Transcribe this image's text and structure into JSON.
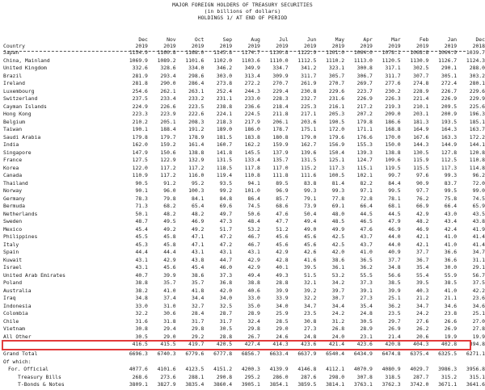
{
  "header": {
    "title": "MAJOR FOREIGN HOLDERS OF TREASURY SECURITIES",
    "subtitle": "(in billions of dollars)",
    "subtitle2": "HOLDINGS 1/ AT END OF PERIOD"
  },
  "columns": {
    "country_label": "Country",
    "months": [
      "Dec",
      "Nov",
      "Oct",
      "Sep",
      "Aug",
      "Jul",
      "Jun",
      "May",
      "Apr",
      "Mar",
      "Feb",
      "Jan",
      "Dec"
    ],
    "years": [
      "2019",
      "2019",
      "2019",
      "2019",
      "2019",
      "2019",
      "2019",
      "2019",
      "2019",
      "2019",
      "2019",
      "2019",
      "2018"
    ]
  },
  "rows": [
    {
      "name": "Japan",
      "values": [
        "1154.9",
        "1160.8",
        "1168.0",
        "1145.8",
        "1174.7",
        "1130.8",
        "1122.9",
        "1101.0",
        "1064.0",
        "1078.1",
        "1068.8",
        "1064.9",
        "1039.7"
      ]
    },
    {
      "name": "China, Mainland",
      "values": [
        "1069.9",
        "1089.2",
        "1101.6",
        "1102.0",
        "1103.6",
        "1110.0",
        "1112.5",
        "1110.2",
        "1113.0",
        "1120.5",
        "1130.9",
        "1126.7",
        "1124.3"
      ]
    },
    {
      "name": "United Kingdom",
      "values": [
        "332.6",
        "328.6",
        "334.0",
        "346.2",
        "349.9",
        "334.7",
        "341.2",
        "323.1",
        "300.8",
        "317.1",
        "302.5",
        "290.1",
        "288.0"
      ]
    },
    {
      "name": "Brazil",
      "values": [
        "281.9",
        "293.4",
        "298.6",
        "303.0",
        "313.4",
        "309.9",
        "311.7",
        "305.7",
        "306.7",
        "311.7",
        "307.7",
        "305.1",
        "303.2"
      ]
    },
    {
      "name": "Ireland",
      "values": [
        "281.8",
        "290.0",
        "286.4",
        "273.8",
        "272.2",
        "270.7",
        "261.9",
        "270.7",
        "269.7",
        "277.6",
        "274.8",
        "272.4",
        "280.1"
      ]
    },
    {
      "name": "Luxembourg",
      "values": [
        "254.6",
        "262.1",
        "263.1",
        "252.4",
        "244.3",
        "229.4",
        "230.8",
        "229.6",
        "223.7",
        "230.2",
        "228.9",
        "226.7",
        "229.6"
      ]
    },
    {
      "name": "Switzerland",
      "values": [
        "237.5",
        "233.4",
        "233.2",
        "231.1",
        "233.0",
        "228.3",
        "232.7",
        "231.6",
        "226.9",
        "226.3",
        "221.4",
        "226.9",
        "229.9"
      ]
    },
    {
      "name": "Cayman Islands",
      "values": [
        "224.9",
        "226.6",
        "223.5",
        "238.8",
        "236.6",
        "218.4",
        "225.3",
        "216.1",
        "217.2",
        "219.3",
        "210.1",
        "209.5",
        "225.6"
      ]
    },
    {
      "name": "Hong Kong",
      "values": [
        "223.3",
        "223.9",
        "222.6",
        "224.1",
        "224.5",
        "211.8",
        "217.1",
        "205.3",
        "207.2",
        "209.0",
        "203.1",
        "200.9",
        "196.3"
      ]
    },
    {
      "name": "Belgium",
      "values": [
        "210.2",
        "205.1",
        "208.3",
        "218.3",
        "217.9",
        "206.1",
        "203.6",
        "190.5",
        "179.8",
        "186.6",
        "181.3",
        "193.5",
        "185.1"
      ]
    },
    {
      "name": "Taiwan",
      "values": [
        "190.1",
        "188.4",
        "191.2",
        "189.0",
        "186.0",
        "178.7",
        "175.1",
        "172.0",
        "171.1",
        "168.8",
        "164.9",
        "164.3",
        "163.7"
      ]
    },
    {
      "name": "Saudi Arabia",
      "values": [
        "179.8",
        "179.7",
        "178.9",
        "181.5",
        "183.8",
        "180.8",
        "179.0",
        "179.6",
        "176.6",
        "170.0",
        "167.6",
        "163.3",
        "172.2"
      ]
    },
    {
      "name": "India",
      "values": [
        "162.0",
        "159.2",
        "161.4",
        "160.7",
        "162.2",
        "159.9",
        "162.7",
        "156.9",
        "155.3",
        "150.0",
        "144.3",
        "144.9",
        "144.1"
      ]
    },
    {
      "name": "Singapore",
      "values": [
        "147.9",
        "150.6",
        "138.8",
        "141.8",
        "145.5",
        "137.9",
        "139.6",
        "150.4",
        "139.3",
        "138.8",
        "130.5",
        "127.8",
        "120.8"
      ]
    },
    {
      "name": "France",
      "values": [
        "127.5",
        "122.9",
        "132.9",
        "131.5",
        "133.4",
        "135.7",
        "131.5",
        "125.1",
        "124.7",
        "109.6",
        "115.9",
        "112.5",
        "110.8"
      ]
    },
    {
      "name": "Korea",
      "values": [
        "122.0",
        "117.2",
        "117.2",
        "118.5",
        "117.8",
        "117.0",
        "115.2",
        "117.3",
        "115.1",
        "119.5",
        "115.5",
        "117.3",
        "114.8"
      ]
    },
    {
      "name": "Canada",
      "values": [
        "110.9",
        "117.2",
        "116.0",
        "119.4",
        "110.8",
        "111.8",
        "111.6",
        "100.5",
        "102.1",
        "99.7",
        "97.6",
        "99.3",
        "96.2"
      ]
    },
    {
      "name": "Thailand",
      "values": [
        "90.5",
        "91.2",
        "95.2",
        "93.5",
        "94.1",
        "89.5",
        "83.8",
        "81.4",
        "82.2",
        "84.4",
        "90.9",
        "83.7",
        "72.0"
      ]
    },
    {
      "name": "Norway",
      "values": [
        "90.1",
        "96.0",
        "100.3",
        "99.2",
        "101.0",
        "96.9",
        "99.3",
        "99.3",
        "97.1",
        "99.5",
        "97.7",
        "99.5",
        "99.0"
      ]
    },
    {
      "name": "Germany",
      "values": [
        "78.3",
        "79.8",
        "84.1",
        "84.8",
        "86.4",
        "85.7",
        "79.1",
        "77.8",
        "72.8",
        "78.1",
        "76.2",
        "75.8",
        "74.5"
      ]
    },
    {
      "name": "Bermuda",
      "values": [
        "71.3",
        "68.2",
        "65.4",
        "69.6",
        "74.5",
        "68.6",
        "73.9",
        "69.1",
        "66.4",
        "68.1",
        "66.9",
        "66.4",
        "65.9"
      ]
    },
    {
      "name": "Netherlands",
      "values": [
        "50.1",
        "48.2",
        "48.2",
        "49.7",
        "50.6",
        "47.6",
        "50.4",
        "48.0",
        "44.5",
        "44.5",
        "42.9",
        "43.0",
        "43.5"
      ]
    },
    {
      "name": "Sweden",
      "values": [
        "48.7",
        "49.5",
        "46.9",
        "47.3",
        "48.4",
        "47.7",
        "49.4",
        "48.5",
        "46.5",
        "47.9",
        "48.2",
        "43.4",
        "43.8"
      ]
    },
    {
      "name": "Mexico",
      "values": [
        "45.4",
        "49.2",
        "49.2",
        "51.7",
        "53.2",
        "51.2",
        "49.0",
        "49.9",
        "47.6",
        "46.9",
        "46.9",
        "42.4",
        "41.9"
      ]
    },
    {
      "name": "Philippines",
      "values": [
        "45.5",
        "45.8",
        "47.1",
        "47.2",
        "46.7",
        "45.6",
        "45.6",
        "42.5",
        "43.7",
        "44.0",
        "42.1",
        "41.0",
        "41.4"
      ]
    },
    {
      "name": "Italy",
      "values": [
        "45.3",
        "45.8",
        "47.1",
        "47.2",
        "46.7",
        "45.6",
        "45.6",
        "42.5",
        "43.7",
        "44.0",
        "42.1",
        "41.0",
        "41.4"
      ]
    },
    {
      "name": "Spain",
      "values": [
        "44.4",
        "44.4",
        "43.1",
        "43.1",
        "43.1",
        "42.9",
        "42.6",
        "42.0",
        "41.0",
        "40.9",
        "37.7",
        "36.6",
        "34.7"
      ]
    },
    {
      "name": "Kuwait",
      "values": [
        "43.1",
        "42.9",
        "43.8",
        "44.7",
        "42.9",
        "42.8",
        "41.6",
        "38.6",
        "36.5",
        "37.7",
        "36.7",
        "36.6",
        "31.1"
      ]
    },
    {
      "name": "Israel",
      "values": [
        "43.1",
        "45.6",
        "45.4",
        "46.0",
        "42.9",
        "40.1",
        "39.5",
        "36.1",
        "36.2",
        "34.8",
        "35.4",
        "30.0",
        "29.1"
      ]
    },
    {
      "name": "United Arab Emirates",
      "values": [
        "40.7",
        "39.9",
        "38.6",
        "37.3",
        "49.4",
        "49.3",
        "51.5",
        "53.2",
        "55.5",
        "56.6",
        "55.4",
        "55.9",
        "56.7"
      ]
    },
    {
      "name": "Poland",
      "values": [
        "38.8",
        "35.7",
        "35.7",
        "36.8",
        "38.8",
        "28.8",
        "32.1",
        "34.2",
        "37.3",
        "38.5",
        "39.5",
        "38.5",
        "37.5"
      ]
    },
    {
      "name": "Australia",
      "values": [
        "38.2",
        "41.0",
        "41.8",
        "42.0",
        "40.6",
        "39.9",
        "39.2",
        "39.7",
        "39.1",
        "39.9",
        "40.3",
        "41.0",
        "42.2"
      ]
    },
    {
      "name": "Iraq",
      "values": [
        "34.8",
        "37.4",
        "34.4",
        "34.0",
        "33.0",
        "33.9",
        "32.2",
        "30.7",
        "27.3",
        "25.1",
        "21.2",
        "21.1",
        "23.6"
      ]
    },
    {
      "name": "Indonesia",
      "values": [
        "33.0",
        "31.0",
        "32.7",
        "32.5",
        "35.0",
        "34.0",
        "34.7",
        "34.4",
        "35.4",
        "36.2",
        "34.7",
        "34.6",
        "34.6"
      ]
    },
    {
      "name": "Colombia",
      "values": [
        "32.2",
        "30.6",
        "28.4",
        "28.7",
        "28.9",
        "25.9",
        "23.5",
        "24.2",
        "24.8",
        "23.5",
        "24.2",
        "23.8",
        "25.1"
      ]
    },
    {
      "name": "Chile",
      "values": [
        "31.6",
        "31.8",
        "31.7",
        "31.7",
        "32.4",
        "28.5",
        "30.8",
        "31.2",
        "30.5",
        "29.7",
        "27.6",
        "26.6",
        "27.0"
      ]
    },
    {
      "name": "Vietnam",
      "values": [
        "30.8",
        "29.4",
        "29.8",
        "30.5",
        "29.8",
        "29.0",
        "27.3",
        "26.8",
        "28.9",
        "26.9",
        "26.2",
        "26.9",
        "27.8"
      ]
    },
    {
      "name": "All Other",
      "values": [
        "30.5",
        "29.0",
        "29.2",
        "28.8",
        "26.7",
        "24.6",
        "24.8",
        "24.0",
        "23.1",
        "21.4",
        "20.6",
        "19.9",
        "19.9"
      ]
    },
    {
      "name": "",
      "values": [
        "416.5",
        "415.5",
        "419.7",
        "420.5",
        "427.4",
        "414.3",
        "423.6",
        "421.4",
        "423.6",
        "420.8",
        "404.3",
        "402.8",
        "394.8"
      ]
    }
  ],
  "grand_total": {
    "name": "Grand Total",
    "values": [
      "6696.3",
      "6740.3",
      "6779.6",
      "6777.8",
      "6856.7",
      "6633.4",
      "6637.9",
      "6540.4",
      "6434.9",
      "6474.8",
      "6375.4",
      "6325.5",
      "6271.1"
    ]
  },
  "footer": {
    "of_which": "Of which:",
    "rows": [
      {
        "name": "For. Official",
        "values": [
          "4077.6",
          "4101.6",
          "4123.5",
          "4151.2",
          "4200.3",
          "4139.9",
          "4146.8",
          "4112.1",
          "4070.9",
          "4080.9",
          "4029.7",
          "3986.3",
          "3956.8"
        ]
      },
      {
        "name": "Treasury Bills",
        "values": [
          "268.6",
          "273.6",
          "288.1",
          "290.8",
          "295.2",
          "286.0",
          "287.6",
          "298.0",
          "307.8",
          "318.5",
          "287.7",
          "315.2",
          "315.1"
        ]
      },
      {
        "name": "T-Bonds & Notes",
        "values": [
          "3809.1",
          "3827.9",
          "3835.4",
          "3860.4",
          "3905.1",
          "3854.1",
          "3859.5",
          "3814.1",
          "3763.1",
          "3762.3",
          "3742.0",
          "3671.1",
          "3641.6"
        ]
      }
    ]
  },
  "colors": {
    "highlight": "#e23b3b",
    "text": "#1a1a1a"
  }
}
